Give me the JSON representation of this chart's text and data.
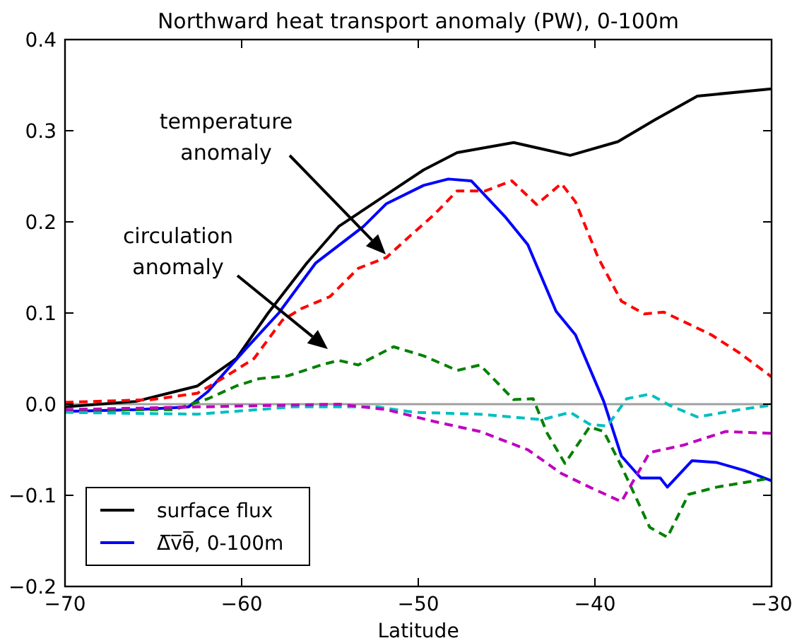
{
  "chart_data": {
    "type": "line",
    "title": "Northward heat transport anomaly (PW), 0-100m",
    "xlabel": "Latitude",
    "xlim": [
      -70,
      -30
    ],
    "xticks": [
      {
        "value": -70,
        "label": "−70"
      },
      {
        "value": -60,
        "label": "−60"
      },
      {
        "value": -50,
        "label": "−50"
      },
      {
        "value": -40,
        "label": "−40"
      },
      {
        "value": -30,
        "label": "−30"
      }
    ],
    "ylim": [
      -0.2,
      0.4
    ],
    "yticks": [
      {
        "value": -0.2,
        "label": "−0.2"
      },
      {
        "value": -0.1,
        "label": "−0.1"
      },
      {
        "value": 0,
        "label": "0.0"
      },
      0.1,
      0.2,
      0.3,
      0.4
    ],
    "grid": false,
    "legend": "bottom left",
    "ref_lines": [
      {
        "axis": "y",
        "value": 0,
        "color": "#a0a0a0"
      }
    ],
    "annotations": [
      "temperature\nanomaly",
      "circulation\nanomaly"
    ],
    "series": [
      {
        "name": "surface flux",
        "color": "#000000",
        "line_style": "solid",
        "x": [
          -70,
          -66,
          -62.5,
          -60.3,
          -58.5,
          -56.3,
          -54.5,
          -51.8,
          -49.7,
          -47.8,
          -44.6,
          -41.4,
          -38.7,
          -36.6,
          -34.2,
          -30
        ],
        "values": [
          -0.003,
          0.003,
          0.02,
          0.05,
          0.1,
          0.155,
          0.195,
          0.23,
          0.257,
          0.276,
          0.287,
          0.273,
          0.288,
          0.312,
          0.338,
          0.346
        ]
      },
      {
        "name": "Δ̅v̅θ̅, 0-100m",
        "color": "#0000ff",
        "line_style": "solid",
        "x": [
          -70,
          -66,
          -63,
          -61.9,
          -59.8,
          -57.9,
          -55.8,
          -53.1,
          -51.8,
          -49.7,
          -48.3,
          -47,
          -45.1,
          -43.8,
          -42.2,
          -41.1,
          -39.5,
          -38.5,
          -37.4,
          -36.3,
          -35.9,
          -34.5,
          -33.1,
          -31.5,
          -30
        ],
        "values": [
          -0.008,
          -0.006,
          -0.003,
          0.014,
          0.06,
          0.1,
          0.155,
          0.195,
          0.22,
          0.24,
          0.247,
          0.245,
          0.206,
          0.175,
          0.102,
          0.076,
          0.003,
          -0.057,
          -0.081,
          -0.081,
          -0.091,
          -0.062,
          -0.064,
          -0.073,
          -0.084
        ]
      },
      {
        "color": "#ff0000",
        "line_style": "dashed",
        "x": [
          -70,
          -65.1,
          -62.5,
          -61.1,
          -59.3,
          -57.7,
          -56.6,
          -55,
          -53.4,
          -51.8,
          -50.5,
          -49.1,
          -47.8,
          -46.2,
          -44.7,
          -43.3,
          -41.9,
          -41.1,
          -39.8,
          -38.5,
          -37.2,
          -36.1,
          -33.4,
          -31.8,
          -30
        ],
        "values": [
          0.002,
          0.005,
          0.012,
          0.028,
          0.05,
          0.092,
          0.105,
          0.118,
          0.149,
          0.161,
          0.184,
          0.208,
          0.234,
          0.234,
          0.245,
          0.219,
          0.242,
          0.222,
          0.16,
          0.113,
          0.099,
          0.101,
          0.076,
          0.056,
          0.03
        ]
      },
      {
        "color": "#008000",
        "line_style": "dashed",
        "x": [
          -70,
          -63.8,
          -61.9,
          -60.3,
          -59,
          -57.4,
          -55.5,
          -54.5,
          -53.4,
          -51.4,
          -49.7,
          -47.8,
          -46.5,
          -44.6,
          -43.5,
          -42.7,
          -41.7,
          -40.3,
          -39.5,
          -38.5,
          -36.9,
          -35.9,
          -34.7,
          -33.1,
          -30
        ],
        "values": [
          -0.006,
          -0.006,
          0.006,
          0.02,
          0.028,
          0.031,
          0.043,
          0.048,
          0.043,
          0.063,
          0.053,
          0.037,
          0.043,
          0.005,
          0.006,
          -0.032,
          -0.065,
          -0.025,
          -0.03,
          -0.068,
          -0.135,
          -0.146,
          -0.099,
          -0.091,
          -0.081
        ]
      },
      {
        "color": "#00bfbf",
        "line_style": "dashed",
        "x": [
          -70,
          -62.5,
          -57.1,
          -52.3,
          -50.2,
          -46.5,
          -43,
          -41.4,
          -40.3,
          -39.3,
          -38.2,
          -36.9,
          -35.8,
          -34.2,
          -31.8,
          -30
        ],
        "values": [
          -0.009,
          -0.011,
          -0.003,
          -0.003,
          -0.009,
          -0.011,
          -0.017,
          -0.009,
          -0.022,
          -0.024,
          0.006,
          0.011,
          -0.001,
          -0.014,
          -0.006,
          -0.001
        ]
      },
      {
        "color": "#bf00bf",
        "line_style": "dashed",
        "x": [
          -70,
          -62.5,
          -54.5,
          -51.8,
          -49.1,
          -46.5,
          -43.8,
          -41.9,
          -40.3,
          -38.5,
          -36.9,
          -35,
          -32.6,
          -30
        ],
        "values": [
          -0.006,
          -0.003,
          0,
          -0.006,
          -0.019,
          -0.03,
          -0.05,
          -0.076,
          -0.091,
          -0.107,
          -0.053,
          -0.045,
          -0.03,
          -0.032
        ]
      }
    ]
  }
}
